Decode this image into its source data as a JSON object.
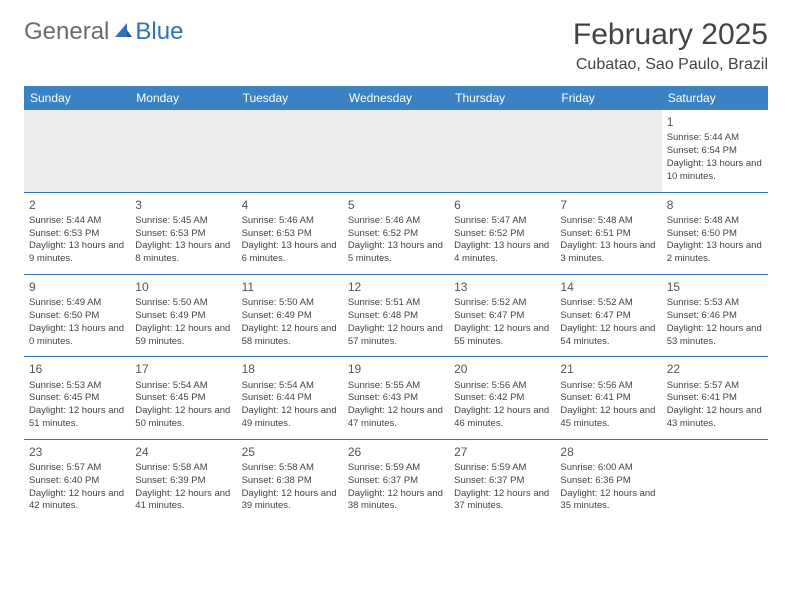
{
  "logo": {
    "text1": "General",
    "text2": "Blue"
  },
  "title": "February 2025",
  "location": "Cubatao, Sao Paulo, Brazil",
  "dow_bg": "#3b82c4",
  "border_color": "#2f73b5",
  "days_of_week": [
    "Sunday",
    "Monday",
    "Tuesday",
    "Wednesday",
    "Thursday",
    "Friday",
    "Saturday"
  ],
  "weeks": [
    [
      null,
      null,
      null,
      null,
      null,
      null,
      {
        "n": "1",
        "sr": "5:44 AM",
        "ss": "6:54 PM",
        "dl": "13 hours and 10 minutes."
      }
    ],
    [
      {
        "n": "2",
        "sr": "5:44 AM",
        "ss": "6:53 PM",
        "dl": "13 hours and 9 minutes."
      },
      {
        "n": "3",
        "sr": "5:45 AM",
        "ss": "6:53 PM",
        "dl": "13 hours and 8 minutes."
      },
      {
        "n": "4",
        "sr": "5:46 AM",
        "ss": "6:53 PM",
        "dl": "13 hours and 6 minutes."
      },
      {
        "n": "5",
        "sr": "5:46 AM",
        "ss": "6:52 PM",
        "dl": "13 hours and 5 minutes."
      },
      {
        "n": "6",
        "sr": "5:47 AM",
        "ss": "6:52 PM",
        "dl": "13 hours and 4 minutes."
      },
      {
        "n": "7",
        "sr": "5:48 AM",
        "ss": "6:51 PM",
        "dl": "13 hours and 3 minutes."
      },
      {
        "n": "8",
        "sr": "5:48 AM",
        "ss": "6:50 PM",
        "dl": "13 hours and 2 minutes."
      }
    ],
    [
      {
        "n": "9",
        "sr": "5:49 AM",
        "ss": "6:50 PM",
        "dl": "13 hours and 0 minutes."
      },
      {
        "n": "10",
        "sr": "5:50 AM",
        "ss": "6:49 PM",
        "dl": "12 hours and 59 minutes."
      },
      {
        "n": "11",
        "sr": "5:50 AM",
        "ss": "6:49 PM",
        "dl": "12 hours and 58 minutes."
      },
      {
        "n": "12",
        "sr": "5:51 AM",
        "ss": "6:48 PM",
        "dl": "12 hours and 57 minutes."
      },
      {
        "n": "13",
        "sr": "5:52 AM",
        "ss": "6:47 PM",
        "dl": "12 hours and 55 minutes."
      },
      {
        "n": "14",
        "sr": "5:52 AM",
        "ss": "6:47 PM",
        "dl": "12 hours and 54 minutes."
      },
      {
        "n": "15",
        "sr": "5:53 AM",
        "ss": "6:46 PM",
        "dl": "12 hours and 53 minutes."
      }
    ],
    [
      {
        "n": "16",
        "sr": "5:53 AM",
        "ss": "6:45 PM",
        "dl": "12 hours and 51 minutes."
      },
      {
        "n": "17",
        "sr": "5:54 AM",
        "ss": "6:45 PM",
        "dl": "12 hours and 50 minutes."
      },
      {
        "n": "18",
        "sr": "5:54 AM",
        "ss": "6:44 PM",
        "dl": "12 hours and 49 minutes."
      },
      {
        "n": "19",
        "sr": "5:55 AM",
        "ss": "6:43 PM",
        "dl": "12 hours and 47 minutes."
      },
      {
        "n": "20",
        "sr": "5:56 AM",
        "ss": "6:42 PM",
        "dl": "12 hours and 46 minutes."
      },
      {
        "n": "21",
        "sr": "5:56 AM",
        "ss": "6:41 PM",
        "dl": "12 hours and 45 minutes."
      },
      {
        "n": "22",
        "sr": "5:57 AM",
        "ss": "6:41 PM",
        "dl": "12 hours and 43 minutes."
      }
    ],
    [
      {
        "n": "23",
        "sr": "5:57 AM",
        "ss": "6:40 PM",
        "dl": "12 hours and 42 minutes."
      },
      {
        "n": "24",
        "sr": "5:58 AM",
        "ss": "6:39 PM",
        "dl": "12 hours and 41 minutes."
      },
      {
        "n": "25",
        "sr": "5:58 AM",
        "ss": "6:38 PM",
        "dl": "12 hours and 39 minutes."
      },
      {
        "n": "26",
        "sr": "5:59 AM",
        "ss": "6:37 PM",
        "dl": "12 hours and 38 minutes."
      },
      {
        "n": "27",
        "sr": "5:59 AM",
        "ss": "6:37 PM",
        "dl": "12 hours and 37 minutes."
      },
      {
        "n": "28",
        "sr": "6:00 AM",
        "ss": "6:36 PM",
        "dl": "12 hours and 35 minutes."
      },
      null
    ]
  ]
}
